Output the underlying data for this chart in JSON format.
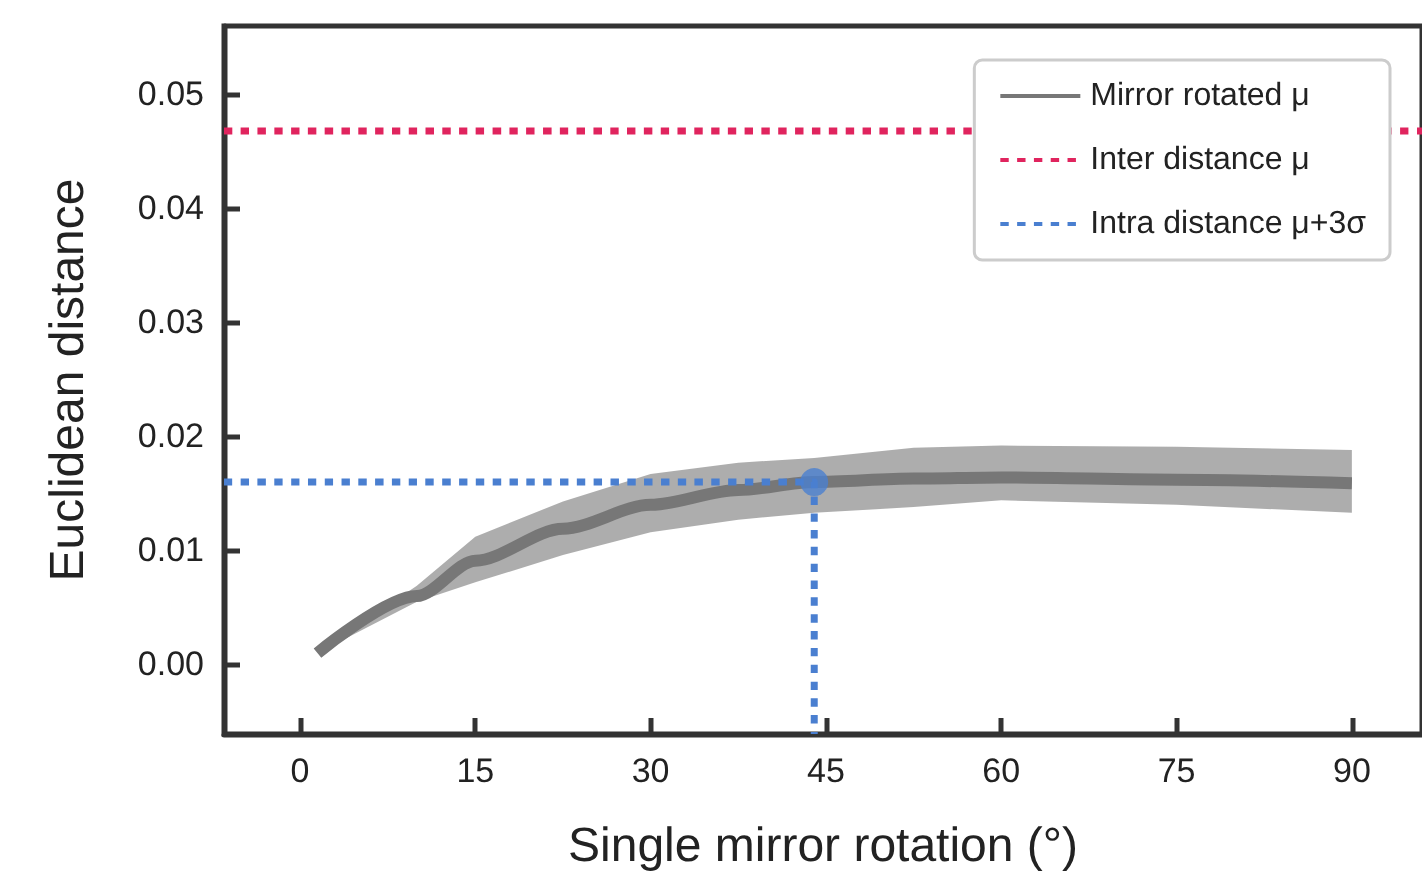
{
  "chart_data": {
    "type": "line",
    "xlabel": "Single mirror rotation (°)",
    "ylabel": "Euclidean distance",
    "xlim": [
      -6.5,
      96
    ],
    "xticks": [
      0,
      15,
      30,
      45,
      60,
      75,
      90
    ],
    "ylim": [
      -0.0061,
      0.056
    ],
    "yticks": [
      {
        "value": 0,
        "label": "0.00"
      },
      {
        "value": 0.01,
        "label": "0.01"
      },
      {
        "value": 0.02,
        "label": "0.02"
      },
      {
        "value": 0.03,
        "label": "0.03"
      },
      {
        "value": 0.04,
        "label": "0.04"
      },
      {
        "value": 0.05,
        "label": "0.05"
      }
    ],
    "grid": false,
    "legend": "top right",
    "marker": "none",
    "series": [
      {
        "name": "Mirror rotated μ",
        "color": "#777777",
        "line_style": "solid",
        "x": [
          1.5,
          10,
          15,
          22.5,
          30,
          37.5,
          44,
          52.5,
          60,
          75,
          90
        ],
        "values": [
          0.001,
          0.006,
          0.0091,
          0.0119,
          0.014,
          0.0153,
          0.016,
          0.0163,
          0.0164,
          0.0162,
          0.0159
        ],
        "lower": [
          0.001,
          0.0055,
          0.0072,
          0.0096,
          0.0116,
          0.0127,
          0.0133,
          0.0138,
          0.0144,
          0.014,
          0.0133
        ],
        "upper": [
          0.001,
          0.0069,
          0.0112,
          0.0143,
          0.0167,
          0.0177,
          0.0181,
          0.019,
          0.0192,
          0.0191,
          0.0188
        ]
      },
      {
        "name": "Inter distance μ",
        "color": "#e0245e",
        "line_style": "dotted",
        "x": [
          -6.5,
          96
        ],
        "values": [
          0.0468,
          0.0468
        ]
      },
      {
        "name": "Intra distance μ+3σ",
        "color": "#4a7fd0",
        "line_style": "dotted",
        "x": [
          -6.5,
          44,
          44
        ],
        "values": [
          0.016,
          0.016,
          -0.0061
        ]
      },
      {
        "type": "scatter",
        "color": "#4a7fd0",
        "marker": "circle",
        "x": [
          44
        ],
        "values": [
          0.016
        ]
      }
    ]
  }
}
